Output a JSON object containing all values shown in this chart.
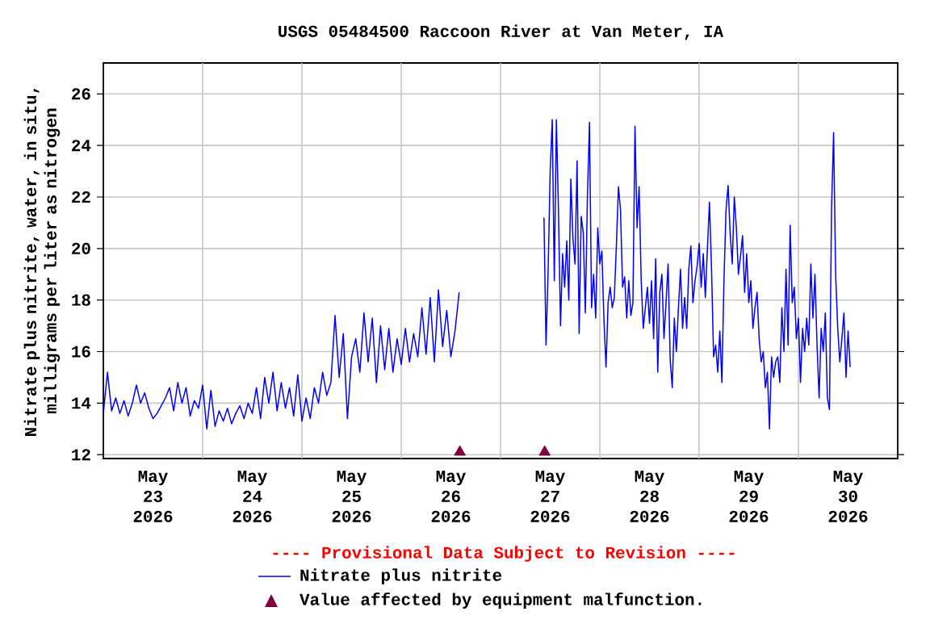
{
  "chart_data": {
    "type": "line",
    "title": "USGS 05484500 Raccoon River at Van Meter, IA",
    "ylabel": "Nitrate plus nitrite, water, in situ, milligrams per liter as nitrogen",
    "annotations": [
      "---- Provisional Data Subject to Revision ----"
    ],
    "xlim": [
      "2026-05-23T00:00",
      "2026-05-31T00:00"
    ],
    "ylim": [
      11.85,
      27.2
    ],
    "xticks": [
      {
        "value": "2026-05-23T12:00",
        "label": "May 23 2026"
      },
      {
        "value": "2026-05-24T12:00",
        "label": "May 24 2026"
      },
      {
        "value": "2026-05-25T12:00",
        "label": "May 25 2026"
      },
      {
        "value": "2026-05-26T12:00",
        "label": "May 26 2026"
      },
      {
        "value": "2026-05-27T12:00",
        "label": "May 27 2026"
      },
      {
        "value": "2026-05-28T12:00",
        "label": "May 28 2026"
      },
      {
        "value": "2026-05-29T12:00",
        "label": "May 29 2026"
      },
      {
        "value": "2026-05-30T12:00",
        "label": "May 30 2026"
      },
      {
        "value": "2026-05-24T00:00",
        "label": null
      },
      {
        "value": "2026-05-25T00:00",
        "label": null
      },
      {
        "value": "2026-05-26T00:00",
        "label": null
      },
      {
        "value": "2026-05-27T00:00",
        "label": null
      },
      {
        "value": "2026-05-28T00:00",
        "label": null
      },
      {
        "value": "2026-05-29T00:00",
        "label": null
      },
      {
        "value": "2026-05-30T00:00",
        "label": null
      }
    ],
    "yticks": [
      12,
      14,
      16,
      18,
      20,
      22,
      24,
      26
    ],
    "grid": true,
    "legend": "bottom",
    "series": [
      {
        "name": "Nitrate plus nitrite",
        "color": "#0000ff",
        "x": [
          "2026-05-23T00:00",
          "2026-05-23T01:00",
          "2026-05-23T02:00",
          "2026-05-23T03:00",
          "2026-05-23T04:00",
          "2026-05-23T05:00",
          "2026-05-23T06:00",
          "2026-05-23T07:00",
          "2026-05-23T08:00",
          "2026-05-23T09:00",
          "2026-05-23T10:00",
          "2026-05-23T11:00",
          "2026-05-23T12:00",
          "2026-05-23T13:00",
          "2026-05-23T14:00",
          "2026-05-23T15:00",
          "2026-05-23T16:00",
          "2026-05-23T17:00",
          "2026-05-23T18:00",
          "2026-05-23T19:00",
          "2026-05-23T20:00",
          "2026-05-23T21:00",
          "2026-05-23T22:00",
          "2026-05-23T23:00",
          "2026-05-24T00:00",
          "2026-05-24T01:00",
          "2026-05-24T02:00",
          "2026-05-24T03:00",
          "2026-05-24T04:00",
          "2026-05-24T05:00",
          "2026-05-24T06:00",
          "2026-05-24T07:00",
          "2026-05-24T08:00",
          "2026-05-24T09:00",
          "2026-05-24T10:00",
          "2026-05-24T11:00",
          "2026-05-24T12:00",
          "2026-05-24T13:00",
          "2026-05-24T14:00",
          "2026-05-24T15:00",
          "2026-05-24T16:00",
          "2026-05-24T17:00",
          "2026-05-24T18:00",
          "2026-05-24T19:00",
          "2026-05-24T20:00",
          "2026-05-24T21:00",
          "2026-05-24T22:00",
          "2026-05-24T23:00",
          "2026-05-25T00:00",
          "2026-05-25T01:00",
          "2026-05-25T02:00",
          "2026-05-25T03:00",
          "2026-05-25T04:00",
          "2026-05-25T05:00",
          "2026-05-25T06:00",
          "2026-05-25T07:00",
          "2026-05-25T08:00",
          "2026-05-25T09:00",
          "2026-05-25T10:00",
          "2026-05-25T11:00",
          "2026-05-25T12:00",
          "2026-05-25T13:00",
          "2026-05-25T14:00",
          "2026-05-25T15:00",
          "2026-05-25T16:00",
          "2026-05-25T17:00",
          "2026-05-25T18:00",
          "2026-05-25T19:00",
          "2026-05-25T20:00",
          "2026-05-25T21:00",
          "2026-05-25T22:00",
          "2026-05-25T23:00",
          "2026-05-26T00:00",
          "2026-05-26T01:00",
          "2026-05-26T02:00",
          "2026-05-26T03:00",
          "2026-05-26T04:00",
          "2026-05-26T05:00",
          "2026-05-26T06:00",
          "2026-05-26T07:00",
          "2026-05-26T08:00",
          "2026-05-26T09:00",
          "2026-05-26T10:00",
          "2026-05-26T11:00",
          "2026-05-26T12:00",
          "2026-05-26T13:00",
          "2026-05-26T14:00",
          "2026-05-26T22:00",
          "2026-05-27T10:30",
          "2026-05-27T11:00",
          "2026-05-27T11:30",
          "2026-05-27T12:00",
          "2026-05-27T12:30",
          "2026-05-27T13:00",
          "2026-05-27T13:30",
          "2026-05-27T14:00",
          "2026-05-27T14:30",
          "2026-05-27T15:00",
          "2026-05-27T15:30",
          "2026-05-27T16:00",
          "2026-05-27T16:30",
          "2026-05-27T17:00",
          "2026-05-27T17:30",
          "2026-05-27T18:00",
          "2026-05-27T18:30",
          "2026-05-27T19:00",
          "2026-05-27T19:30",
          "2026-05-27T20:00",
          "2026-05-27T20:30",
          "2026-05-27T21:00",
          "2026-05-27T21:30",
          "2026-05-27T22:00",
          "2026-05-27T22:30",
          "2026-05-27T23:00",
          "2026-05-27T23:30",
          "2026-05-28T00:00",
          "2026-05-28T00:30",
          "2026-05-28T01:00",
          "2026-05-28T01:30",
          "2026-05-28T02:00",
          "2026-05-28T02:30",
          "2026-05-28T03:00",
          "2026-05-28T03:30",
          "2026-05-28T04:00",
          "2026-05-28T04:30",
          "2026-05-28T05:00",
          "2026-05-28T05:30",
          "2026-05-28T06:00",
          "2026-05-28T06:30",
          "2026-05-28T07:00",
          "2026-05-28T07:30",
          "2026-05-28T08:00",
          "2026-05-28T08:30",
          "2026-05-28T09:00",
          "2026-05-28T09:30",
          "2026-05-28T10:00",
          "2026-05-28T10:30",
          "2026-05-28T11:00",
          "2026-05-28T11:30",
          "2026-05-28T12:00",
          "2026-05-28T12:30",
          "2026-05-28T13:00",
          "2026-05-28T13:30",
          "2026-05-28T14:00",
          "2026-05-28T14:30",
          "2026-05-28T15:00",
          "2026-05-28T15:30",
          "2026-05-28T16:00",
          "2026-05-28T16:30",
          "2026-05-28T17:00",
          "2026-05-28T17:30",
          "2026-05-28T18:00",
          "2026-05-28T18:30",
          "2026-05-28T19:00",
          "2026-05-28T19:30",
          "2026-05-28T20:00",
          "2026-05-28T20:30",
          "2026-05-28T21:00",
          "2026-05-28T21:30",
          "2026-05-28T22:00",
          "2026-05-28T22:30",
          "2026-05-28T23:00",
          "2026-05-28T23:30",
          "2026-05-29T00:00",
          "2026-05-29T00:30",
          "2026-05-29T01:00",
          "2026-05-29T01:30",
          "2026-05-29T02:00",
          "2026-05-29T02:30",
          "2026-05-29T03:00",
          "2026-05-29T03:30",
          "2026-05-29T04:00",
          "2026-05-29T04:30",
          "2026-05-29T05:00",
          "2026-05-29T05:30",
          "2026-05-29T06:00",
          "2026-05-29T06:30",
          "2026-05-29T07:00",
          "2026-05-29T07:30",
          "2026-05-29T08:00",
          "2026-05-29T08:30",
          "2026-05-29T09:00",
          "2026-05-29T09:30",
          "2026-05-29T10:00",
          "2026-05-29T10:30",
          "2026-05-29T11:00",
          "2026-05-29T11:30",
          "2026-05-29T12:00",
          "2026-05-29T12:30",
          "2026-05-29T13:00",
          "2026-05-29T13:30",
          "2026-05-29T14:00",
          "2026-05-29T14:30",
          "2026-05-29T15:00",
          "2026-05-29T15:30",
          "2026-05-29T16:00",
          "2026-05-29T16:30",
          "2026-05-29T17:00",
          "2026-05-29T17:30",
          "2026-05-29T18:00",
          "2026-05-29T18:30",
          "2026-05-29T19:00",
          "2026-05-29T19:30",
          "2026-05-29T20:00",
          "2026-05-29T20:30",
          "2026-05-29T21:00",
          "2026-05-29T21:30",
          "2026-05-29T22:00",
          "2026-05-29T22:30",
          "2026-05-29T23:00",
          "2026-05-29T23:30",
          "2026-05-30T00:00",
          "2026-05-30T00:30",
          "2026-05-30T01:00",
          "2026-05-30T01:30",
          "2026-05-30T02:00",
          "2026-05-30T02:30",
          "2026-05-30T03:00",
          "2026-05-30T03:30",
          "2026-05-30T04:00",
          "2026-05-30T04:30",
          "2026-05-30T05:00",
          "2026-05-30T05:30",
          "2026-05-30T06:00",
          "2026-05-30T06:30",
          "2026-05-30T07:00",
          "2026-05-30T07:30",
          "2026-05-30T08:00",
          "2026-05-30T08:30",
          "2026-05-30T09:00",
          "2026-05-30T09:30",
          "2026-05-30T10:00",
          "2026-05-30T10:30",
          "2026-05-30T11:00",
          "2026-05-30T11:30",
          "2026-05-30T12:00",
          "2026-05-30T12:30"
        ],
        "values": [
          13.6,
          15.2,
          13.7,
          14.2,
          13.6,
          14.1,
          13.5,
          14.0,
          14.7,
          14.0,
          14.4,
          13.8,
          13.4,
          13.6,
          13.9,
          14.2,
          14.6,
          13.7,
          14.8,
          14.0,
          14.6,
          13.5,
          14.1,
          13.8,
          14.7,
          13.0,
          14.5,
          13.1,
          13.7,
          13.3,
          13.8,
          13.2,
          13.6,
          13.9,
          13.4,
          14.0,
          13.6,
          14.6,
          13.4,
          15.0,
          14.0,
          15.2,
          13.7,
          14.8,
          13.8,
          14.6,
          13.5,
          15.1,
          13.3,
          14.2,
          13.4,
          14.6,
          14.0,
          15.2,
          14.3,
          14.8,
          17.4,
          15.0,
          16.7,
          13.4,
          15.8,
          16.5,
          15.2,
          17.5,
          15.6,
          17.3,
          14.8,
          17.0,
          15.3,
          16.9,
          15.2,
          16.5,
          15.5,
          16.9,
          15.6,
          16.7,
          15.8,
          17.7,
          15.9,
          18.1,
          15.6,
          18.4,
          16.2,
          17.6,
          15.8,
          16.8,
          18.3,
          null,
          21.2,
          16.25,
          19.1,
          23.0,
          25.0,
          18.75,
          25.0,
          21.5,
          17.0,
          19.8,
          18.5,
          20.3,
          18.0,
          22.7,
          20.4,
          19.4,
          23.4,
          16.7,
          21.25,
          20.6,
          17.5,
          22.0,
          24.9,
          17.7,
          19.0,
          17.3,
          20.8,
          19.4,
          19.9,
          17.2,
          15.4,
          17.9,
          18.5,
          17.7,
          18.1,
          20.1,
          22.4,
          21.5,
          18.5,
          18.9,
          17.3,
          18.75,
          17.4,
          17.9,
          24.75,
          20.8,
          22.4,
          18.75,
          16.9,
          17.7,
          18.5,
          17.1,
          18.75,
          16.5,
          19.6,
          15.2,
          18.3,
          19.0,
          16.5,
          17.9,
          19.4,
          15.7,
          14.6,
          17.3,
          16.0,
          17.7,
          19.2,
          16.9,
          18.1,
          16.9,
          19.2,
          20.1,
          17.9,
          18.75,
          19.3,
          20.2,
          18.5,
          19.8,
          18.1,
          20.0,
          21.8,
          19.2,
          15.8,
          16.25,
          15.2,
          16.8,
          14.8,
          18.75,
          21.5,
          22.45,
          20.6,
          19.4,
          22.0,
          20.8,
          19.0,
          19.7,
          20.5,
          18.3,
          19.8,
          17.9,
          18.75,
          16.9,
          17.7,
          18.3,
          16.5,
          15.6,
          16.0,
          14.6,
          15.2,
          13.0,
          15.8,
          15.0,
          15.6,
          15.8,
          14.8,
          17.7,
          16.0,
          19.2,
          16.25,
          20.9,
          17.9,
          18.5,
          16.5,
          17.3,
          14.8,
          16.9,
          16.0,
          17.3,
          16.25,
          19.4,
          17.3,
          19.0,
          16.25,
          14.2,
          16.9,
          16.0,
          17.5,
          14.2,
          13.75,
          21.5,
          24.5,
          19.0,
          16.9,
          15.6,
          16.5,
          17.5,
          15.0,
          16.8,
          15.4
        ]
      },
      {
        "name": "Value affected by equipment malfunction.",
        "color": "#800040",
        "type": "scatter",
        "marker": "triangle",
        "x": [
          "2026-05-26T14:10",
          "2026-05-27T10:40"
        ],
        "values": [
          12.1,
          12.1
        ]
      }
    ]
  }
}
